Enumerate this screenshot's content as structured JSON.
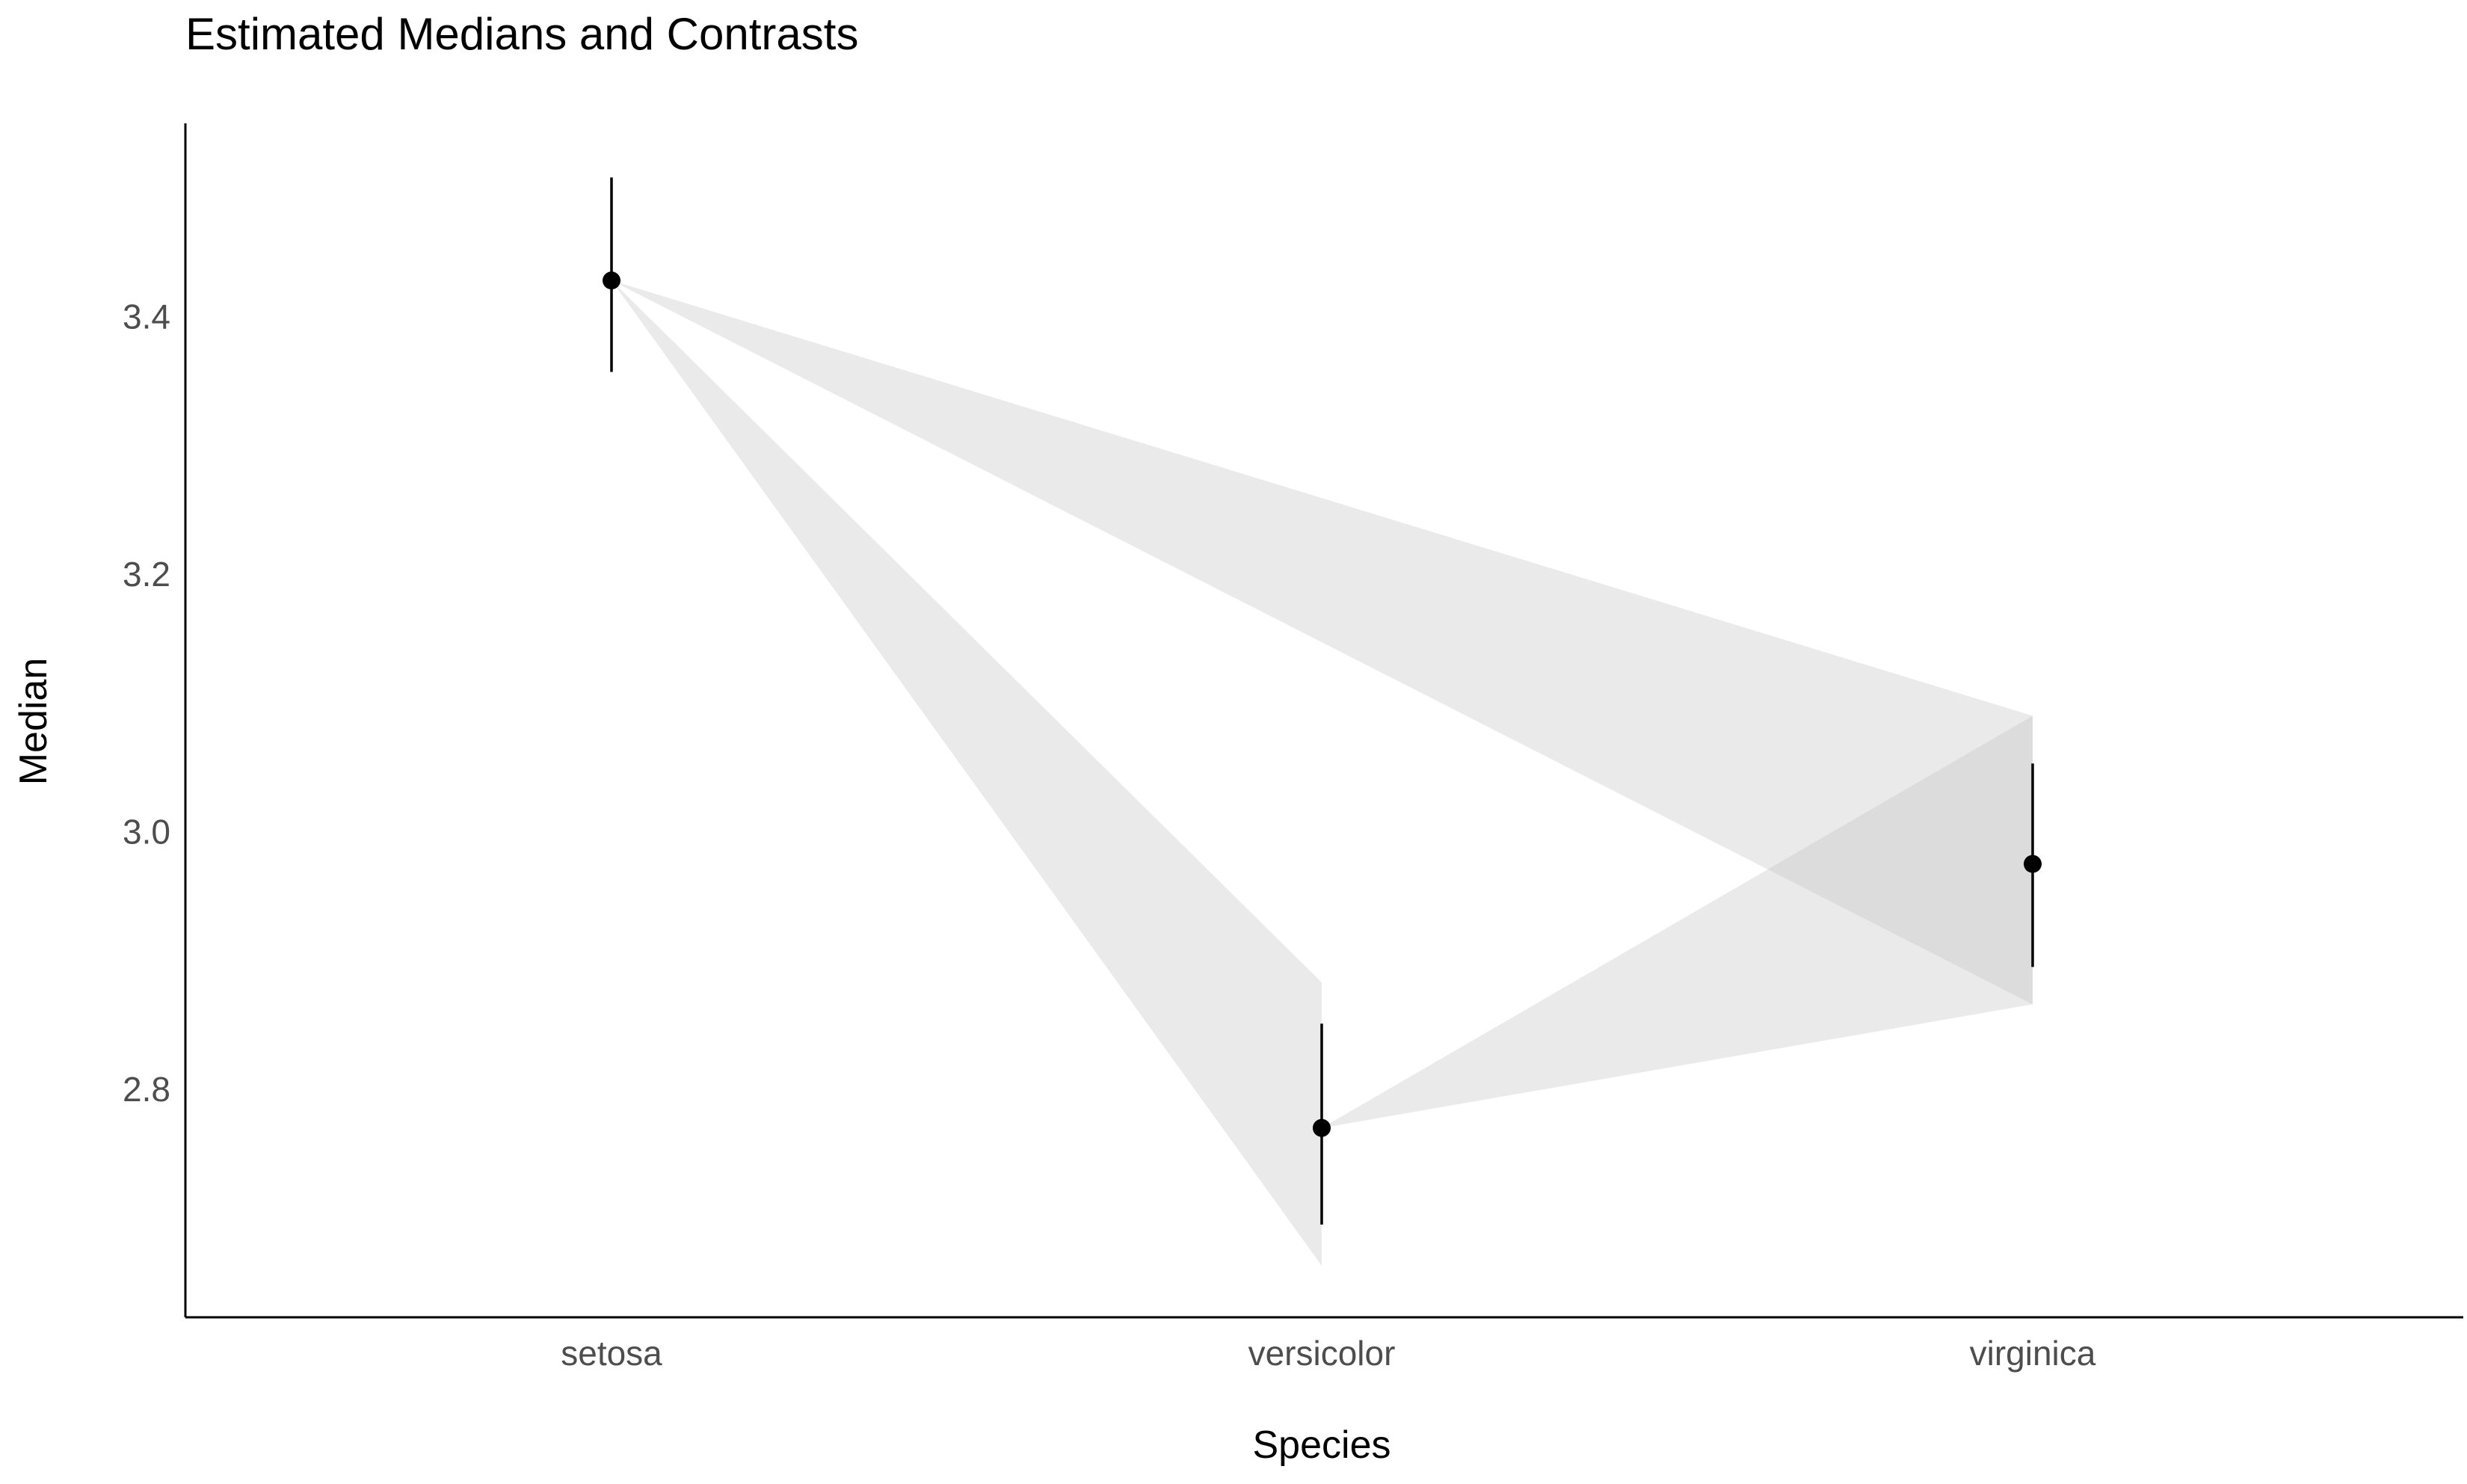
{
  "chart_data": {
    "type": "point-range",
    "title": "Estimated Medians and Contrasts",
    "xlabel": "Species",
    "ylabel": "Median",
    "categories": [
      "setosa",
      "versicolor",
      "virginica"
    ],
    "points": [
      {
        "category": "setosa",
        "median": 3.428,
        "ci_low": 3.357,
        "ci_high": 3.508
      },
      {
        "category": "versicolor",
        "median": 2.77,
        "ci_low": 2.695,
        "ci_high": 2.851
      },
      {
        "category": "virginica",
        "median": 2.975,
        "ci_low": 2.895,
        "ci_high": 3.053
      }
    ],
    "contrasts": [
      {
        "from": "setosa",
        "to": "versicolor",
        "band_low": 2.663,
        "band_high": 2.883
      },
      {
        "from": "setosa",
        "to": "virginica",
        "band_low": 2.866,
        "band_high": 3.09
      },
      {
        "from": "versicolor",
        "to": "virginica",
        "band_low": 2.866,
        "band_high": 3.09
      }
    ],
    "yticks": [
      2.8,
      3.0,
      3.2,
      3.4
    ],
    "ytick_labels": [
      "2.8",
      "3.0",
      "3.2",
      "3.4"
    ],
    "ylim": [
      2.623,
      3.55
    ],
    "grid": false,
    "colors": {
      "point": "#000000",
      "band": "#d9d9d9",
      "axis": "#000000"
    }
  }
}
